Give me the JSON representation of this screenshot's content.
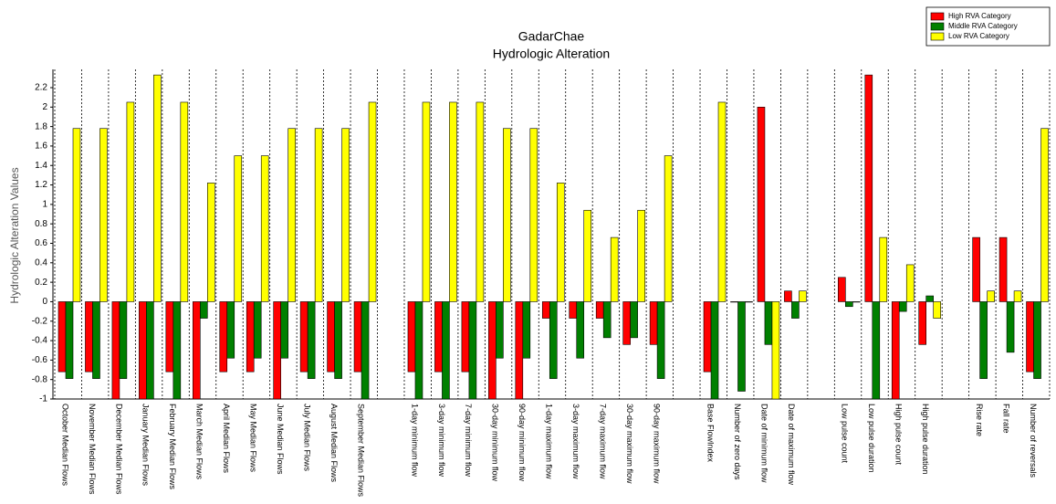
{
  "chart_data": {
    "type": "bar",
    "title": "GadarChae",
    "subtitle": "Hydrologic Alteration",
    "y_label": "Hydrologic Alteration Values",
    "categories": [
      "October Median Flows",
      "November Median Flows",
      "December Median Flows",
      "January Median Flows",
      "February Median Flows",
      "March Median Flows",
      "April Median Flows",
      "May Median Flows",
      "June Median Flows",
      "July Median Flows",
      "August Median Flows",
      "September Median Flows",
      null,
      "1-day minimum flow",
      "3-day minimum flow",
      "7-day minimum flow",
      "30-day minimum flow",
      "90-day minimum flow",
      "1-day maximum flow",
      "3-day maximum flow",
      "7-day maximum flow",
      "30-day maximum flow",
      "90-day maximum flow",
      null,
      "Base FlowIndex",
      "Number of zero days",
      "Date of minimum flow",
      "Date of maximum flow",
      null,
      "Low pulse count",
      "Low pulse duration",
      "High pulse count",
      "High pulse duration",
      null,
      "Rise rate",
      "Fall rate",
      "Number of reversals"
    ],
    "series": [
      {
        "name": "High RVA Category",
        "color": "#ff0000",
        "values": [
          -0.72,
          -0.72,
          -1,
          -1,
          -0.72,
          -1,
          -0.72,
          -0.72,
          -1,
          -0.72,
          -0.72,
          -0.72,
          null,
          -0.72,
          -0.72,
          -0.72,
          -1,
          -1,
          -0.17,
          -0.17,
          -0.17,
          -0.44,
          -0.44,
          null,
          -0.72,
          0,
          2.0,
          0.11,
          null,
          0.25,
          2.33,
          -1,
          -0.44,
          null,
          0.66,
          0.66,
          -0.72
        ]
      },
      {
        "name": "Middle RVA Category",
        "color": "#008000",
        "values": [
          -0.79,
          -0.79,
          -0.79,
          -1,
          -1,
          -0.17,
          -0.58,
          -0.58,
          -0.58,
          -0.79,
          -0.79,
          -1,
          null,
          -1,
          -1,
          -1,
          -0.58,
          -0.58,
          -0.79,
          -0.58,
          -0.37,
          -0.37,
          -0.79,
          null,
          -1,
          -0.92,
          -0.44,
          -0.17,
          null,
          -0.05,
          -1,
          -0.1,
          0.06,
          null,
          -0.79,
          -0.52,
          -0.79
        ]
      },
      {
        "name": "Low RVA Category",
        "color": "#ffff00",
        "values": [
          1.78,
          1.78,
          2.05,
          2.33,
          2.05,
          1.22,
          1.5,
          1.5,
          1.78,
          1.78,
          1.78,
          2.05,
          null,
          2.05,
          2.05,
          2.05,
          1.78,
          1.78,
          1.22,
          0.94,
          0.66,
          0.94,
          1.5,
          null,
          2.05,
          0,
          -1,
          0.11,
          null,
          0,
          0.66,
          0.38,
          -0.17,
          null,
          0.11,
          0.11,
          1.78
        ]
      }
    ],
    "ylim": [
      -1,
      2.35
    ],
    "yticks": [
      -1,
      -0.8,
      -0.6,
      -0.4,
      -0.2,
      0,
      0.2,
      0.4,
      0.6,
      0.8,
      1,
      1.2,
      1.4,
      1.6,
      1.8,
      2,
      2.2
    ],
    "grid": false,
    "legend": "upper right"
  }
}
